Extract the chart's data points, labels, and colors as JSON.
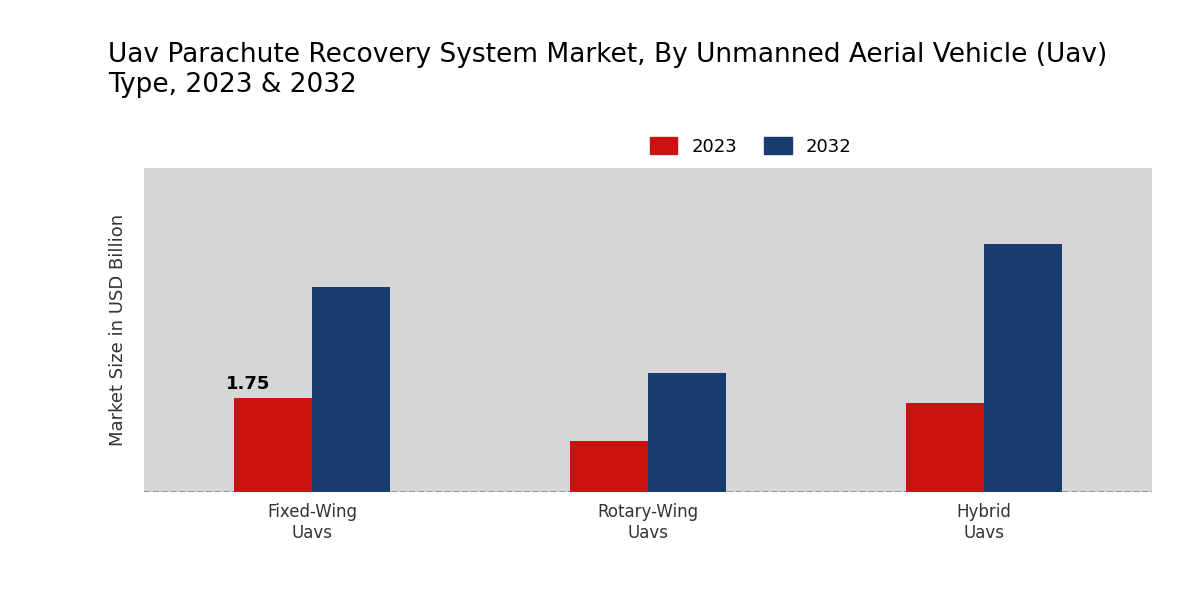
{
  "title": "Uav Parachute Recovery System Market, By Unmanned Aerial Vehicle (Uav)\nType, 2023 & 2032",
  "ylabel": "Market Size in USD Billion",
  "categories": [
    "Fixed-Wing\nUavs",
    "Rotary-Wing\nUavs",
    "Hybrid\nUavs"
  ],
  "values_2023": [
    1.75,
    0.95,
    1.65
  ],
  "values_2032": [
    3.8,
    2.2,
    4.6
  ],
  "color_2023": "#cc1111",
  "color_2032": "#1a3b6e",
  "annotation_text": "1.75",
  "annotation_bar_idx": 0,
  "background_color_light": "#d8d8d8",
  "background_color_dark": "#c0c0c0",
  "bar_width": 0.28,
  "legend_labels": [
    "2023",
    "2032"
  ],
  "title_fontsize": 19,
  "ylabel_fontsize": 13,
  "tick_fontsize": 12,
  "legend_fontsize": 13,
  "annotation_fontsize": 13,
  "ylim": [
    0,
    6.0
  ],
  "red_bar_bottom_line": "#555555"
}
